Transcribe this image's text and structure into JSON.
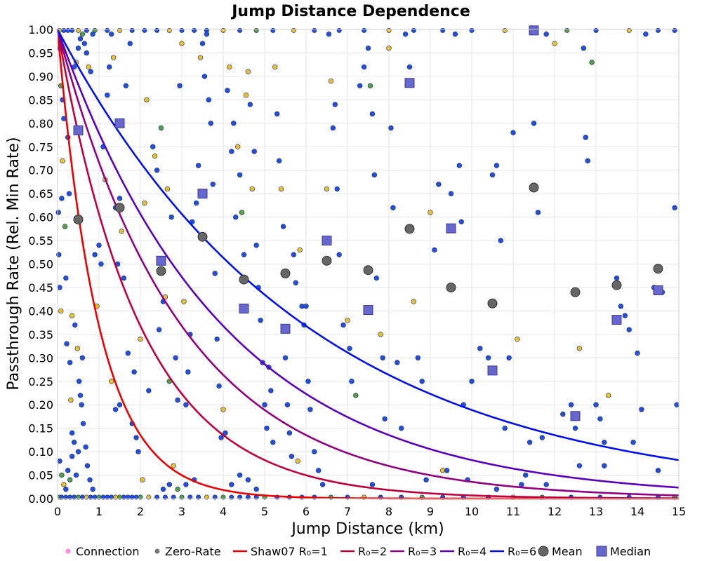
{
  "chart_data": {
    "type": "scatter",
    "title": "Jump Distance Dependence",
    "xlabel": "Jump Distance (km)",
    "ylabel": "Passthrough Rate (Rel. Min Rate)",
    "xlim": [
      0,
      15
    ],
    "ylim": [
      0,
      1
    ],
    "x_ticks": [
      "0",
      "1",
      "2",
      "3",
      "4",
      "5",
      "6",
      "7",
      "8",
      "9",
      "10",
      "11",
      "12",
      "13",
      "14",
      "15"
    ],
    "y_ticks": [
      "0.00",
      "0.05",
      "0.10",
      "0.15",
      "0.20",
      "0.25",
      "0.30",
      "0.35",
      "0.40",
      "0.45",
      "0.50",
      "0.55",
      "0.60",
      "0.65",
      "0.70",
      "0.75",
      "0.80",
      "0.85",
      "0.90",
      "0.95",
      "1.00"
    ],
    "grid": true,
    "legend_position": "bottom",
    "legend": [
      {
        "label": "Connection",
        "kind": "dot",
        "color": "#ff88dd"
      },
      {
        "label": "Zero-Rate",
        "kind": "dot",
        "color": "#777777"
      },
      {
        "label": "Shaw07 R₀=1",
        "kind": "line",
        "color": "#ee0000"
      },
      {
        "label": "R₀=2",
        "kind": "line",
        "color": "#c0003c"
      },
      {
        "label": "R₀=3",
        "kind": "line",
        "color": "#900080"
      },
      {
        "label": "R₀=4",
        "kind": "line",
        "color": "#5a00c0"
      },
      {
        "label": "R₀=6",
        "kind": "line",
        "color": "#0010ee"
      },
      {
        "label": "Mean",
        "kind": "circle",
        "color": "#666666"
      },
      {
        "label": "Median",
        "kind": "square",
        "color": "#6666cc"
      }
    ],
    "curves": [
      {
        "name": "Shaw07 R₀=1",
        "R0": 1,
        "formula": "exp(-x/R0)",
        "color": "#ee0000"
      },
      {
        "name": "R₀=2",
        "R0": 2,
        "formula": "exp(-x/R0)",
        "color": "#c0003c"
      },
      {
        "name": "R₀=3",
        "R0": 3,
        "formula": "exp(-x/R0)",
        "color": "#900080"
      },
      {
        "name": "R₀=4",
        "R0": 4,
        "formula": "exp(-x/R0)",
        "color": "#5a00c0"
      },
      {
        "name": "R₀=6",
        "R0": 6,
        "formula": "exp(-x/R0)",
        "color": "#0010ee"
      }
    ],
    "mean": {
      "x": [
        0.5,
        1.5,
        2.5,
        3.5,
        4.5,
        5.5,
        6.5,
        7.5,
        8.5,
        9.5,
        10.5,
        11.5,
        12.5,
        13.5,
        14.5
      ],
      "y": [
        0.595,
        0.62,
        0.485,
        0.558,
        0.467,
        0.48,
        0.507,
        0.487,
        0.575,
        0.45,
        0.416,
        0.663,
        0.44,
        0.455,
        0.49
      ]
    },
    "median": {
      "x": [
        0.5,
        1.5,
        2.5,
        3.5,
        4.5,
        5.5,
        6.5,
        7.5,
        8.5,
        9.5,
        10.5,
        11.5,
        12.5,
        13.5,
        14.5
      ],
      "y": [
        0.785,
        0.8,
        0.507,
        0.65,
        0.405,
        0.362,
        0.55,
        0.402,
        0.886,
        0.576,
        0.273,
        0.998,
        0.176,
        0.381,
        0.444
      ]
    },
    "scatter_colors": {
      "blue": "#2250dd",
      "yellow": "#e8c030",
      "green": "#55a040"
    },
    "scatter_points": [
      [
        0.02,
        0.61,
        "b"
      ],
      [
        0.03,
        0.52,
        "b"
      ],
      [
        0.05,
        0.45,
        "b"
      ],
      [
        0.08,
        0.4,
        "y"
      ],
      [
        0.1,
        0.64,
        "b"
      ],
      [
        0.12,
        0.72,
        "y"
      ],
      [
        0.15,
        0.81,
        "b"
      ],
      [
        0.18,
        0.58,
        "g"
      ],
      [
        0.2,
        0.47,
        "b"
      ],
      [
        0.22,
        0.33,
        "b"
      ],
      [
        0.05,
        0.96,
        "b"
      ],
      [
        0.08,
        0.88,
        "g"
      ],
      [
        0.12,
        0.85,
        "b"
      ],
      [
        0.25,
        0.77,
        "b"
      ],
      [
        0.28,
        0.65,
        "b"
      ],
      [
        0.3,
        0.29,
        "b"
      ],
      [
        0.32,
        0.21,
        "y"
      ],
      [
        0.35,
        0.14,
        "b"
      ],
      [
        0.4,
        0.12,
        "b"
      ],
      [
        0.05,
        0.08,
        "b"
      ],
      [
        0.1,
        0.05,
        "g"
      ],
      [
        0.15,
        0.03,
        "y"
      ],
      [
        0.2,
        0.02,
        "b"
      ],
      [
        0.25,
        0.06,
        "b"
      ],
      [
        0.3,
        0.04,
        "g"
      ],
      [
        0.35,
        0.09,
        "b"
      ],
      [
        0.45,
        0.05,
        "b"
      ],
      [
        0.5,
        0.1,
        "b"
      ],
      [
        0.55,
        0.22,
        "b"
      ],
      [
        0.6,
        0.3,
        "b"
      ],
      [
        0.4,
        0.92,
        "b"
      ],
      [
        0.45,
        0.93,
        "y"
      ],
      [
        0.5,
        0.96,
        "b"
      ],
      [
        0.55,
        0.98,
        "b"
      ],
      [
        0.6,
        0.99,
        "g"
      ],
      [
        0.65,
        0.97,
        "b"
      ],
      [
        0.7,
        0.95,
        "b"
      ],
      [
        0.75,
        0.92,
        "y"
      ],
      [
        0.8,
        0.91,
        "b"
      ],
      [
        0.85,
        0.99,
        "b"
      ],
      [
        0.35,
        0.39,
        "y"
      ],
      [
        0.42,
        0.37,
        "b"
      ],
      [
        0.48,
        0.32,
        "y"
      ],
      [
        0.52,
        0.25,
        "b"
      ],
      [
        0.58,
        0.2,
        "b"
      ],
      [
        0.62,
        0.16,
        "b"
      ],
      [
        0.68,
        0.11,
        "b"
      ],
      [
        0.72,
        0.07,
        "b"
      ],
      [
        0.78,
        0.04,
        "b"
      ],
      [
        0.85,
        0.02,
        "b"
      ],
      [
        0.9,
        0.52,
        "b"
      ],
      [
        0.95,
        0.41,
        "y"
      ],
      [
        1.0,
        0.54,
        "b"
      ],
      [
        1.05,
        0.5,
        "b"
      ],
      [
        1.1,
        0.75,
        "b"
      ],
      [
        1.15,
        0.68,
        "y"
      ],
      [
        1.2,
        0.86,
        "b"
      ],
      [
        1.25,
        0.92,
        "b"
      ],
      [
        1.3,
        0.99,
        "b"
      ],
      [
        1.35,
        0.94,
        "y"
      ],
      [
        1.4,
        0.62,
        "b"
      ],
      [
        1.45,
        0.5,
        "b"
      ],
      [
        1.5,
        0.64,
        "b"
      ],
      [
        1.55,
        0.57,
        "y"
      ],
      [
        1.6,
        0.47,
        "b"
      ],
      [
        1.65,
        0.88,
        "b"
      ],
      [
        1.7,
        0.31,
        "b"
      ],
      [
        1.75,
        0.97,
        "b"
      ],
      [
        1.8,
        0.16,
        "b"
      ],
      [
        1.85,
        0.27,
        "b"
      ],
      [
        1.3,
        0.25,
        "y"
      ],
      [
        1.4,
        0.19,
        "b"
      ],
      [
        1.5,
        0.2,
        "b"
      ],
      [
        1.9,
        0.13,
        "b"
      ],
      [
        1.95,
        0.1,
        "b"
      ],
      [
        2.0,
        0.34,
        "y"
      ],
      [
        2.05,
        0.04,
        "y"
      ],
      [
        2.1,
        0.63,
        "y"
      ],
      [
        2.15,
        0.85,
        "y"
      ],
      [
        2.2,
        0.23,
        "b"
      ],
      [
        2.3,
        0.75,
        "b"
      ],
      [
        2.35,
        0.73,
        "y"
      ],
      [
        2.4,
        0.7,
        "b"
      ],
      [
        2.45,
        0.36,
        "b"
      ],
      [
        2.5,
        0.79,
        "g"
      ],
      [
        2.55,
        0.42,
        "b"
      ],
      [
        2.6,
        0.43,
        "y"
      ],
      [
        2.65,
        0.66,
        "y"
      ],
      [
        2.7,
        0.25,
        "g"
      ],
      [
        2.75,
        0.6,
        "b"
      ],
      [
        2.8,
        0.07,
        "y"
      ],
      [
        2.85,
        0.3,
        "b"
      ],
      [
        2.9,
        0.21,
        "b"
      ],
      [
        2.95,
        0.88,
        "b"
      ],
      [
        3.0,
        0.97,
        "y"
      ],
      [
        3.05,
        0.42,
        "y"
      ],
      [
        3.1,
        0.2,
        "b"
      ],
      [
        3.15,
        0.27,
        "b"
      ],
      [
        3.2,
        0.35,
        "b"
      ],
      [
        3.25,
        0.59,
        "b"
      ],
      [
        2.55,
        0.02,
        "b"
      ],
      [
        2.7,
        0.03,
        "b"
      ],
      [
        2.9,
        0.02,
        "g"
      ],
      [
        3.1,
        0.03,
        "b"
      ],
      [
        3.3,
        0.04,
        "b"
      ],
      [
        3.35,
        0.63,
        "b"
      ],
      [
        3.4,
        0.71,
        "b"
      ],
      [
        3.45,
        0.94,
        "y"
      ],
      [
        3.5,
        0.97,
        "b"
      ],
      [
        3.55,
        0.9,
        "b"
      ],
      [
        3.6,
        0.99,
        "b"
      ],
      [
        3.65,
        0.85,
        "b"
      ],
      [
        3.7,
        0.8,
        "b"
      ],
      [
        3.75,
        0.67,
        "b"
      ],
      [
        3.8,
        0.48,
        "b"
      ],
      [
        3.85,
        0.34,
        "b"
      ],
      [
        3.9,
        0.24,
        "b"
      ],
      [
        3.95,
        0.13,
        "b"
      ],
      [
        4.0,
        0.19,
        "y"
      ],
      [
        4.05,
        0.14,
        "b"
      ],
      [
        4.1,
        0.87,
        "b"
      ],
      [
        4.15,
        0.92,
        "y"
      ],
      [
        4.2,
        0.74,
        "b"
      ],
      [
        4.25,
        0.8,
        "b"
      ],
      [
        4.3,
        0.6,
        "b"
      ],
      [
        4.35,
        0.75,
        "y"
      ],
      [
        4.4,
        0.69,
        "b"
      ],
      [
        4.45,
        0.61,
        "g"
      ],
      [
        4.5,
        0.52,
        "b"
      ],
      [
        4.55,
        0.86,
        "y"
      ],
      [
        4.6,
        0.91,
        "y"
      ],
      [
        4.65,
        0.84,
        "b"
      ],
      [
        4.7,
        0.66,
        "y"
      ],
      [
        4.75,
        0.74,
        "b"
      ],
      [
        4.8,
        0.54,
        "b"
      ],
      [
        4.85,
        0.45,
        "b"
      ],
      [
        4.9,
        0.38,
        "b"
      ],
      [
        4.95,
        0.29,
        "b"
      ],
      [
        5.0,
        0.2,
        "b"
      ],
      [
        5.05,
        0.15,
        "b"
      ],
      [
        4.2,
        0.03,
        "b"
      ],
      [
        4.4,
        0.05,
        "b"
      ],
      [
        4.6,
        0.04,
        "b"
      ],
      [
        4.8,
        0.02,
        "b"
      ],
      [
        5.1,
        0.28,
        "b"
      ],
      [
        5.15,
        0.23,
        "b"
      ],
      [
        5.2,
        0.12,
        "b"
      ],
      [
        5.25,
        0.92,
        "y"
      ],
      [
        5.3,
        0.82,
        "b"
      ],
      [
        5.35,
        0.72,
        "b"
      ],
      [
        5.4,
        0.66,
        "y"
      ],
      [
        5.45,
        0.58,
        "b"
      ],
      [
        5.5,
        0.3,
        "b"
      ],
      [
        5.55,
        0.2,
        "b"
      ],
      [
        5.6,
        0.14,
        "b"
      ],
      [
        5.65,
        0.09,
        "b"
      ],
      [
        5.7,
        0.52,
        "b"
      ],
      [
        5.75,
        0.46,
        "b"
      ],
      [
        5.8,
        0.08,
        "y"
      ],
      [
        5.85,
        0.53,
        "y"
      ],
      [
        5.9,
        0.41,
        "b"
      ],
      [
        5.95,
        0.37,
        "b"
      ],
      [
        6.0,
        0.41,
        "b"
      ],
      [
        6.05,
        0.25,
        "b"
      ],
      [
        6.1,
        0.19,
        "b"
      ],
      [
        6.2,
        0.1,
        "b"
      ],
      [
        6.3,
        0.06,
        "b"
      ],
      [
        6.4,
        0.03,
        "b"
      ],
      [
        6.5,
        0.66,
        "y"
      ],
      [
        6.55,
        0.99,
        "b"
      ],
      [
        6.6,
        0.89,
        "y"
      ],
      [
        6.65,
        0.79,
        "b"
      ],
      [
        6.7,
        0.84,
        "b"
      ],
      [
        6.75,
        0.66,
        "b"
      ],
      [
        6.8,
        0.52,
        "b"
      ],
      [
        6.9,
        0.37,
        "b"
      ],
      [
        7.0,
        0.38,
        "y"
      ],
      [
        7.05,
        0.32,
        "b"
      ],
      [
        7.1,
        0.25,
        "b"
      ],
      [
        7.2,
        0.22,
        "g"
      ],
      [
        7.3,
        0.88,
        "b"
      ],
      [
        7.4,
        0.92,
        "b"
      ],
      [
        7.5,
        0.96,
        "b"
      ],
      [
        7.55,
        0.88,
        "g"
      ],
      [
        7.6,
        0.82,
        "b"
      ],
      [
        7.65,
        0.69,
        "b"
      ],
      [
        7.7,
        0.47,
        "b"
      ],
      [
        7.8,
        0.35,
        "y"
      ],
      [
        7.85,
        0.3,
        "b"
      ],
      [
        7.9,
        0.17,
        "b"
      ],
      [
        8.0,
        0.96,
        "y"
      ],
      [
        8.05,
        0.79,
        "b"
      ],
      [
        8.1,
        0.62,
        "b"
      ],
      [
        8.2,
        0.29,
        "b"
      ],
      [
        8.3,
        0.15,
        "b"
      ],
      [
        8.4,
        0.99,
        "b"
      ],
      [
        8.5,
        0.92,
        "b"
      ],
      [
        8.6,
        0.42,
        "y"
      ],
      [
        8.7,
        0.3,
        "b"
      ],
      [
        8.8,
        0.25,
        "b"
      ],
      [
        9.0,
        0.61,
        "y"
      ],
      [
        9.1,
        0.53,
        "b"
      ],
      [
        9.2,
        0.67,
        "b"
      ],
      [
        9.3,
        0.06,
        "y"
      ],
      [
        9.4,
        0.06,
        "b"
      ],
      [
        9.5,
        0.65,
        "b"
      ],
      [
        9.6,
        0.99,
        "b"
      ],
      [
        9.7,
        0.71,
        "b"
      ],
      [
        9.75,
        0.59,
        "b"
      ],
      [
        9.8,
        0.2,
        "b"
      ],
      [
        10.0,
        0.25,
        "b"
      ],
      [
        10.2,
        0.32,
        "b"
      ],
      [
        10.4,
        0.3,
        "b"
      ],
      [
        10.5,
        0.69,
        "b"
      ],
      [
        10.6,
        0.71,
        "b"
      ],
      [
        10.7,
        0.55,
        "b"
      ],
      [
        10.8,
        0.15,
        "b"
      ],
      [
        10.9,
        0.3,
        "b"
      ],
      [
        11.0,
        0.78,
        "b"
      ],
      [
        11.1,
        0.34,
        "y"
      ],
      [
        11.2,
        0.03,
        "b"
      ],
      [
        11.3,
        0.05,
        "b"
      ],
      [
        11.4,
        0.12,
        "b"
      ],
      [
        11.5,
        0.8,
        "b"
      ],
      [
        11.6,
        0.61,
        "b"
      ],
      [
        11.7,
        0.13,
        "b"
      ],
      [
        11.8,
        0.99,
        "b"
      ],
      [
        12.0,
        0.97,
        "y"
      ],
      [
        12.2,
        0.18,
        "b"
      ],
      [
        12.4,
        0.2,
        "b"
      ],
      [
        12.5,
        0.15,
        "b"
      ],
      [
        12.6,
        0.32,
        "y"
      ],
      [
        12.7,
        0.96,
        "b"
      ],
      [
        12.75,
        0.77,
        "b"
      ],
      [
        12.8,
        0.72,
        "b"
      ],
      [
        12.9,
        0.93,
        "g"
      ],
      [
        13.0,
        0.2,
        "b"
      ],
      [
        13.1,
        0.17,
        "b"
      ],
      [
        13.2,
        0.12,
        "b"
      ],
      [
        13.3,
        0.22,
        "y"
      ],
      [
        13.5,
        0.47,
        "b"
      ],
      [
        13.6,
        0.41,
        "b"
      ],
      [
        13.7,
        0.39,
        "b"
      ],
      [
        13.8,
        0.36,
        "b"
      ],
      [
        13.9,
        0.12,
        "b"
      ],
      [
        14.0,
        0.31,
        "b"
      ],
      [
        14.1,
        0.19,
        "b"
      ],
      [
        14.2,
        0.99,
        "b"
      ],
      [
        14.4,
        0.45,
        "b"
      ],
      [
        14.6,
        0.44,
        "b"
      ],
      [
        14.9,
        0.62,
        "b"
      ],
      [
        14.95,
        0.2,
        "b"
      ],
      [
        13.2,
        0.07,
        "b"
      ],
      [
        12.6,
        0.07,
        "b"
      ],
      [
        11.8,
        0.03,
        "b"
      ],
      [
        10.6,
        0.02,
        "b"
      ],
      [
        9.9,
        0.04,
        "b"
      ],
      [
        14.5,
        0.06,
        "b"
      ],
      [
        8.9,
        0.04,
        "b"
      ],
      [
        7.6,
        0.03,
        "b"
      ]
    ],
    "zero_points_x": [
      0.05,
      0.1,
      0.2,
      0.3,
      0.4,
      0.5,
      0.6,
      0.7,
      0.8,
      0.9,
      1.0,
      1.1,
      1.2,
      1.3,
      1.4,
      1.5,
      1.6,
      1.7,
      1.8,
      1.9,
      2.0,
      2.2,
      2.4,
      2.6,
      2.8,
      3.0,
      3.2,
      3.4,
      3.6,
      3.8,
      4.0,
      4.2,
      4.4,
      4.6,
      4.8,
      5.0,
      5.3,
      5.6,
      5.9,
      6.2,
      6.6,
      7.0,
      7.4,
      7.8,
      8.3,
      8.8,
      9.3,
      9.8,
      10.4,
      11.0,
      11.7,
      12.4,
      13.1,
      13.8,
      14.5,
      14.9
    ],
    "top_points_x": [
      0.05,
      0.15,
      0.25,
      0.35,
      0.5,
      0.7,
      0.9,
      1.2,
      1.5,
      1.8,
      2.1,
      2.4,
      2.7,
      3.0,
      3.3,
      3.6,
      4.0,
      4.4,
      4.8,
      5.2,
      5.7,
      6.2,
      6.8,
      7.4,
      8.0,
      8.6,
      9.3,
      10.0,
      10.8,
      11.5,
      12.3,
      13.0,
      13.8,
      14.5,
      14.9
    ]
  }
}
